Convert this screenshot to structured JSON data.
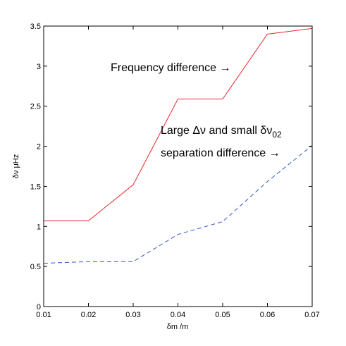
{
  "chart_data": {
    "type": "line",
    "xlabel": "δm /m",
    "ylabel": "δν μHz",
    "xlim": [
      0.01,
      0.07
    ],
    "ylim": [
      0,
      3.5
    ],
    "xticks": [
      "0.01",
      "0.02",
      "0.03",
      "0.04",
      "0.05",
      "0.06",
      "0.07"
    ],
    "yticks": [
      "0",
      "0.5",
      "1",
      "1.5",
      "2",
      "2.5",
      "3",
      "3.5"
    ],
    "grid": false,
    "series": [
      {
        "color": "#e8262a",
        "style": "solid",
        "x": [
          0.01,
          0.02,
          0.03,
          0.04,
          0.05,
          0.06,
          0.07
        ],
        "y": [
          1.07,
          1.07,
          1.52,
          2.59,
          2.59,
          3.4,
          3.47
        ]
      },
      {
        "color": "#3355cc",
        "style": "dashed",
        "x": [
          0.01,
          0.02,
          0.03,
          0.04,
          0.05,
          0.06,
          0.07
        ],
        "y": [
          0.54,
          0.56,
          0.56,
          0.9,
          1.06,
          1.56,
          2.01
        ]
      }
    ],
    "annotations": [
      {
        "text": "Frequency difference →"
      },
      {
        "text": "Large Δν and small δν",
        "subscript": "02"
      },
      {
        "text": "separation difference →"
      }
    ]
  }
}
